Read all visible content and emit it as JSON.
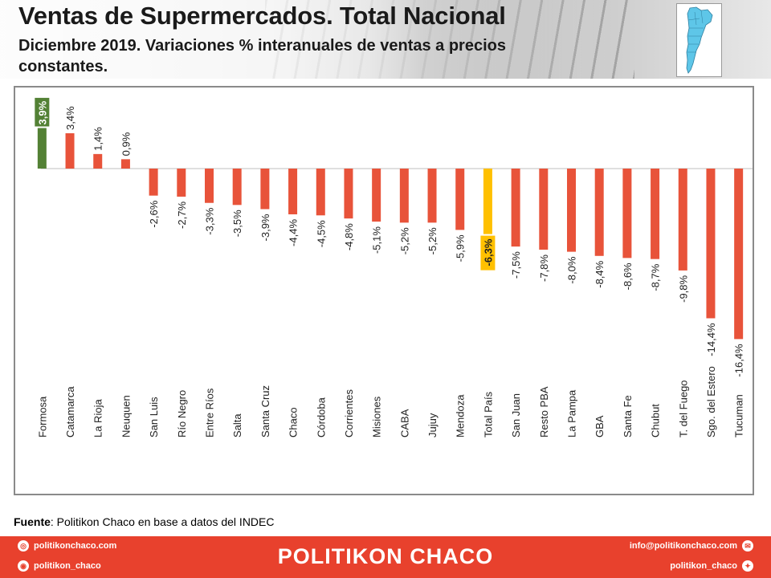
{
  "header": {
    "title": "Ventas de Supermercados. Total Nacional",
    "subtitle": "Diciembre 2019. Variaciones % interanuales de ventas a precios constantes."
  },
  "source": {
    "label": "Fuente",
    "text": ": Politikon Chaco en base a datos del INDEC"
  },
  "footer": {
    "brand": "POLITIKON CHACO",
    "website": "politikonchaco.com",
    "instagram": "politikon_chaco",
    "email": "info@politikonchaco.com",
    "twitter": "politikon_chaco"
  },
  "icons": {
    "website": "globe-icon",
    "instagram": "instagram-icon",
    "email": "mail-icon",
    "twitter": "twitter-icon",
    "map": "argentina-map-icon"
  },
  "colors": {
    "negative_bar": "#e8533a",
    "highlight_max": "#538135",
    "highlight_total": "#ffc000",
    "footer": "#e8412d"
  },
  "chart_data": {
    "type": "bar",
    "categories": [
      "Formosa",
      "Catamarca",
      "La Rioja",
      "Neuquen",
      "San Luis",
      "Río Negro",
      "Entre Ríos",
      "Salta",
      "Santa Cruz",
      "Chaco",
      "Córdoba",
      "Corrientes",
      "Misiones",
      "CABA",
      "Jujuy",
      "Mendoza",
      "Total País",
      "San Juan",
      "Resto PBA",
      "La Pampa",
      "GBA",
      "Santa Fe",
      "Chubut",
      "T. del Fuego",
      "Sgo. del Estero",
      "Tucuman"
    ],
    "values": [
      3.9,
      3.4,
      1.4,
      0.9,
      -2.6,
      -2.7,
      -3.3,
      -3.5,
      -3.9,
      -4.4,
      -4.5,
      -4.8,
      -5.1,
      -5.2,
      -5.2,
      -5.9,
      -6.3,
      -7.5,
      -7.8,
      -8.0,
      -8.4,
      -8.6,
      -8.7,
      -9.8,
      -14.4,
      -16.4
    ],
    "labels": [
      "3,9%",
      "3,4%",
      "1,4%",
      "0,9%",
      "-2,6%",
      "-2,7%",
      "-3,3%",
      "-3,5%",
      "-3,9%",
      "-4,4%",
      "-4,5%",
      "-4,8%",
      "-5,1%",
      "-5,2%",
      "-5,2%",
      "-5,9%",
      "-6,3%",
      "-7,5%",
      "-7,8%",
      "-8,0%",
      "-8,4%",
      "-8,6%",
      "-8,7%",
      "-9,8%",
      "-14,4%",
      "-16,4%"
    ],
    "highlight": {
      "Formosa": "max",
      "Total País": "total"
    },
    "ylim": [
      -17,
      5
    ],
    "grid": false,
    "legend": "none"
  }
}
